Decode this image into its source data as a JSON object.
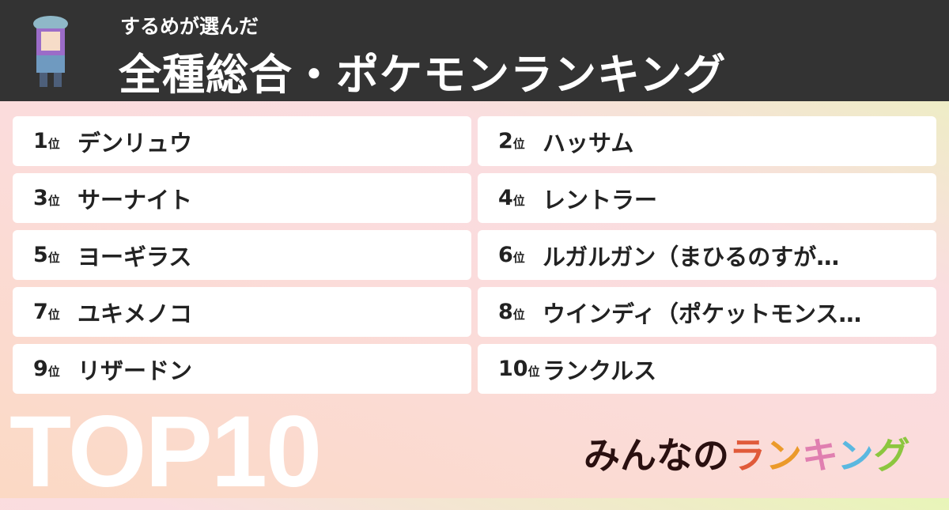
{
  "header": {
    "subtitle": "するめが選んだ",
    "title": "全種総合・ポケモンランキング"
  },
  "ranking": [
    {
      "rank": "1",
      "suffix": "位",
      "name": "デンリュウ"
    },
    {
      "rank": "2",
      "suffix": "位",
      "name": "ハッサム"
    },
    {
      "rank": "3",
      "suffix": "位",
      "name": "サーナイト"
    },
    {
      "rank": "4",
      "suffix": "位",
      "name": "レントラー"
    },
    {
      "rank": "5",
      "suffix": "位",
      "name": "ヨーギラス"
    },
    {
      "rank": "6",
      "suffix": "位",
      "name": "ルガルガン（まひるのすが…"
    },
    {
      "rank": "7",
      "suffix": "位",
      "name": "ユキメノコ"
    },
    {
      "rank": "8",
      "suffix": "位",
      "name": "ウインディ（ポケットモンス…"
    },
    {
      "rank": "9",
      "suffix": "位",
      "name": "リザードン"
    },
    {
      "rank": "10",
      "suffix": "位",
      "name": "ランクルス"
    }
  ],
  "badge": "TOP10",
  "logo": {
    "part1": "みんなの",
    "part2": [
      "ラ",
      "ン",
      "キ",
      "ン",
      "グ"
    ],
    "colors": [
      "#e05a3a",
      "#eb9a2a",
      "#e07fb0",
      "#5ab8e0",
      "#8cc63f"
    ]
  }
}
